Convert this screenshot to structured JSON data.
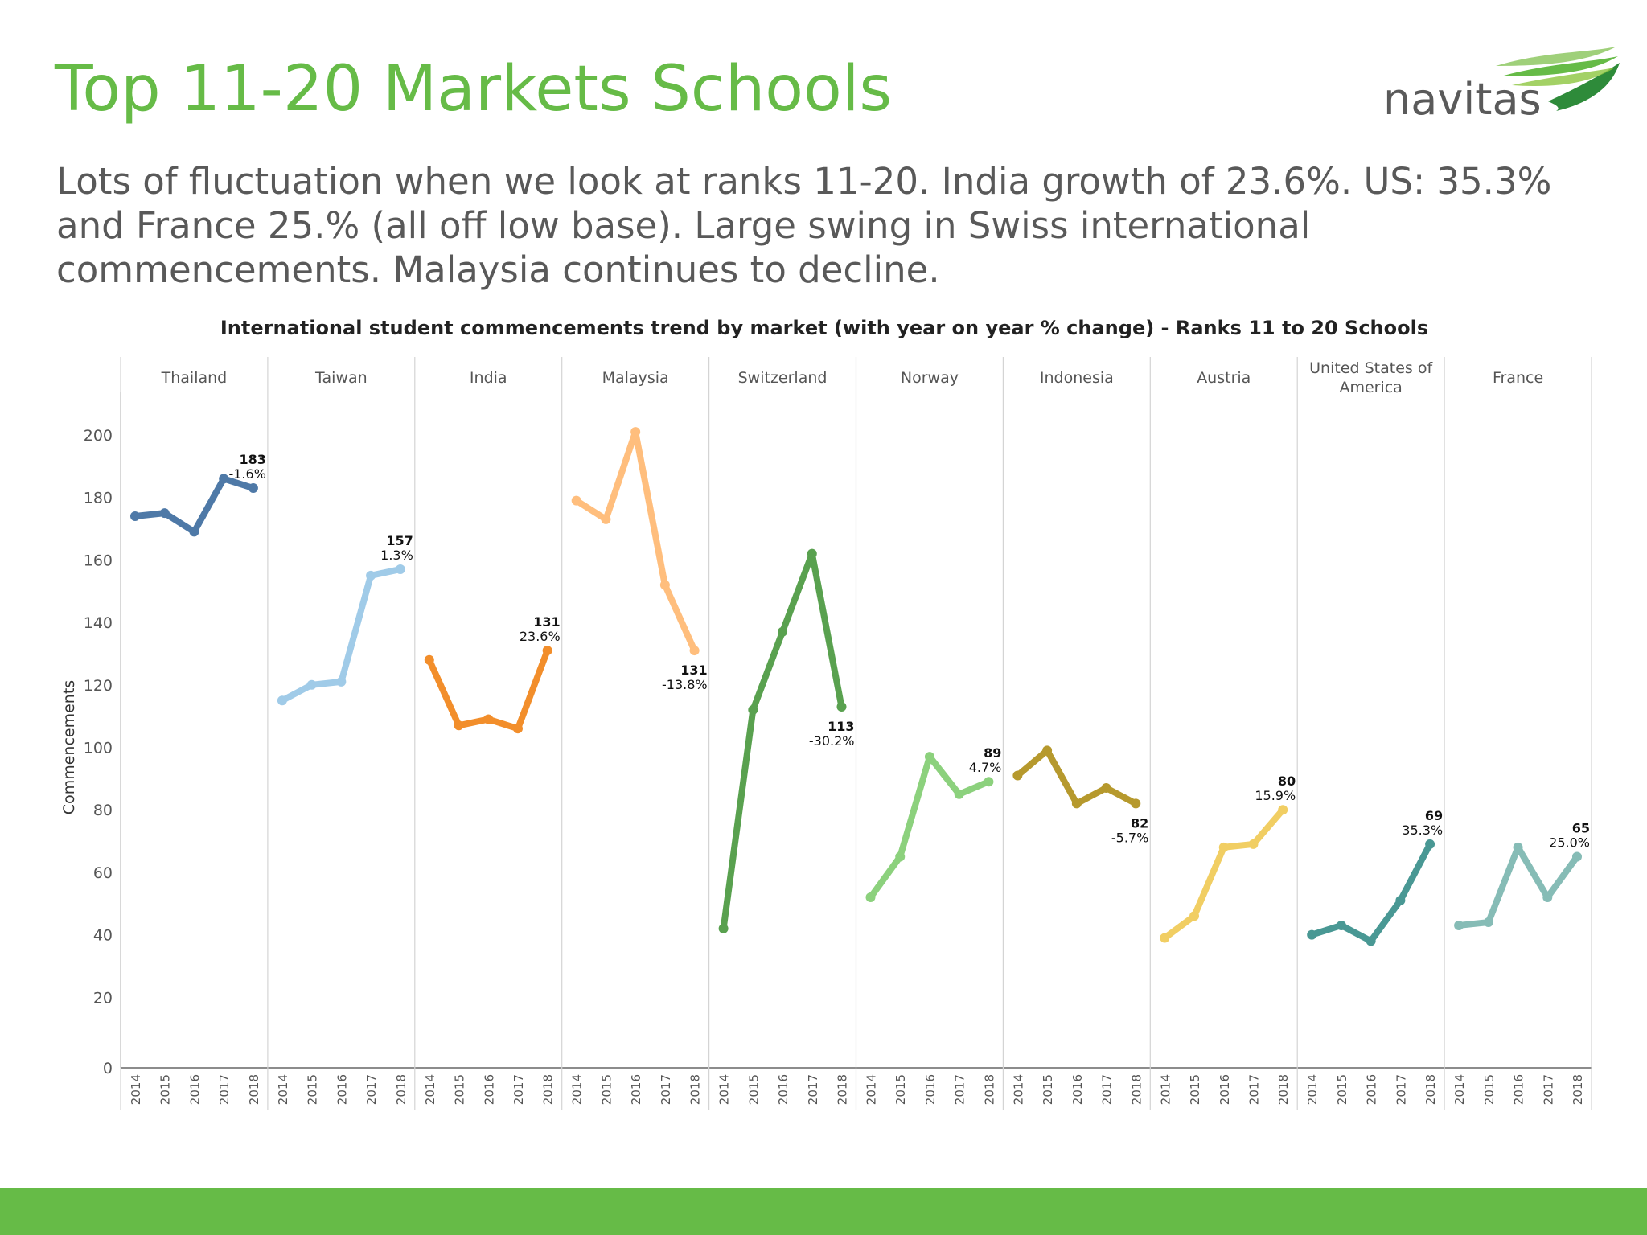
{
  "slide": {
    "title": "Top 11-20 Markets Schools",
    "subtitle": "Lots of fluctuation when we look at ranks 11-20. India growth of 23.6%. US: 35.3% and France 25.% (all off low base). Large swing in Swiss international commencements. Malaysia continues to decline.",
    "logo_text": "navitas"
  },
  "colors": {
    "title": "#66bb47",
    "subtitle": "#595959",
    "footer_bar": "#66bb47"
  },
  "chart_data": {
    "type": "line",
    "title": "International student commencements trend by market (with year on year % change) - Ranks 11 to 20 Schools",
    "ylabel": "Commencements",
    "ylim": [
      0,
      210
    ],
    "yticks": [
      0,
      20,
      40,
      60,
      80,
      100,
      120,
      140,
      160,
      180,
      200
    ],
    "x": [
      "2014",
      "2015",
      "2016",
      "2017",
      "2018"
    ],
    "grid": false,
    "series": [
      {
        "name": "Thailand",
        "color": "#4e79a7",
        "values": [
          174,
          175,
          169,
          186,
          183
        ],
        "label_value": "183",
        "label_change": "-1.6%",
        "label_pos": "above"
      },
      {
        "name": "Taiwan",
        "color": "#a0cbe8",
        "values": [
          115,
          120,
          121,
          155,
          157
        ],
        "label_value": "157",
        "label_change": "1.3%",
        "label_pos": "above"
      },
      {
        "name": "India",
        "color": "#f28e2b",
        "values": [
          128,
          107,
          109,
          106,
          131
        ],
        "label_value": "131",
        "label_change": "23.6%",
        "label_pos": "above"
      },
      {
        "name": "Malaysia",
        "color": "#ffbe7d",
        "values": [
          179,
          173,
          201,
          152,
          131
        ],
        "label_value": "131",
        "label_change": "-13.8%",
        "label_pos": "below"
      },
      {
        "name": "Switzerland",
        "color": "#59a14f",
        "values": [
          42,
          112,
          137,
          162,
          113
        ],
        "label_value": "113",
        "label_change": "-30.2%",
        "label_pos": "below"
      },
      {
        "name": "Norway",
        "color": "#8cd17d",
        "values": [
          52,
          65,
          97,
          85,
          89
        ],
        "label_value": "89",
        "label_change": "4.7%",
        "label_pos": "above"
      },
      {
        "name": "Indonesia",
        "color": "#b6992d",
        "values": [
          91,
          99,
          82,
          87,
          82
        ],
        "label_value": "82",
        "label_change": "-5.7%",
        "label_pos": "below"
      },
      {
        "name": "Austria",
        "color": "#f1ce63",
        "values": [
          39,
          46,
          68,
          69,
          80
        ],
        "label_value": "80",
        "label_change": "15.9%",
        "label_pos": "above"
      },
      {
        "name": "United States of America",
        "color": "#499894",
        "values": [
          40,
          43,
          38,
          51,
          69
        ],
        "label_value": "69",
        "label_change": "35.3%",
        "label_pos": "above"
      },
      {
        "name": "France",
        "color": "#86bcb6",
        "values": [
          43,
          44,
          68,
          52,
          65
        ],
        "label_value": "65",
        "label_change": "25.0%",
        "label_pos": "above"
      }
    ]
  }
}
